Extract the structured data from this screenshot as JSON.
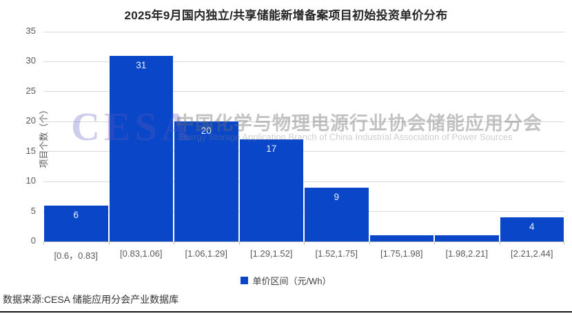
{
  "watermark": {
    "logo": "CESA",
    "cn": "中国化学与物理电源行业协会储能应用分会",
    "en": "Energy Storage Application Branch of China Industrial Association of Power Sources"
  },
  "footer": {
    "source": "数据来源:CESA 储能应用分会产业数据库"
  },
  "colors": {
    "bar": "#0a46c8",
    "grid": "#d9d9d9",
    "axis": "#c0c0c0",
    "tick_label": "#595959",
    "title": "#262626",
    "data_label": "#eef2fa"
  },
  "chart_data": {
    "type": "bar",
    "title": "2025年9月国内独立/共享储能新增备案项目初始投资单价分布",
    "categories": [
      "[0.6，0.83]",
      "[0.83,1.06]",
      "[1.06,1.29]",
      "[1.29,1.52]",
      "[1.52,1.75]",
      "[1.75,1.98]",
      "[1.98,2.21]",
      "[2.21,2.44]"
    ],
    "values": [
      6,
      31,
      20,
      17,
      9,
      1,
      1,
      4
    ],
    "data_labels": [
      "6",
      "31",
      "20",
      "17",
      "9",
      "",
      "",
      "4"
    ],
    "xlabel": "",
    "ylabel": "项目个数（个）",
    "ylim": [
      0,
      35
    ],
    "ytick_step": 5,
    "yticks": [
      0,
      5,
      10,
      15,
      20,
      25,
      30,
      35
    ],
    "grid": true,
    "legend": "单价区间（元/Wh）",
    "legend_position": "bottom-center"
  }
}
